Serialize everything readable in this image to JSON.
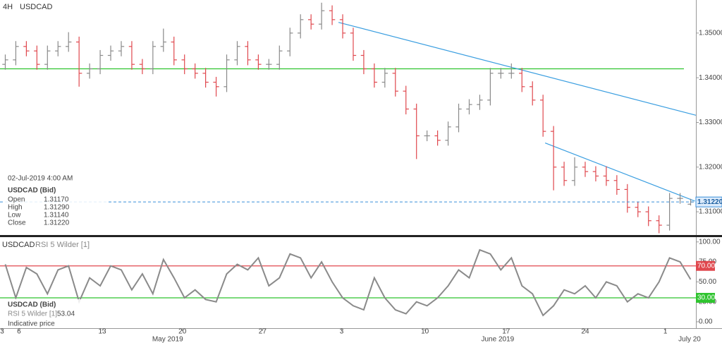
{
  "header": {
    "timeframe": "4H",
    "symbol": "USDCAD"
  },
  "info_box": {
    "date": "02-Jul-2019 4:00 AM",
    "instrument": "USDCAD (Bid)",
    "rows": [
      [
        "Open",
        "1.31170"
      ],
      [
        "High",
        "1.31290"
      ],
      [
        "Low",
        "1.31140"
      ],
      [
        "Close",
        "1.31220"
      ]
    ]
  },
  "rsi_info": {
    "instrument": "USDCAD (Bid)",
    "indicator": "RSI 5 Wilder [1]",
    "note": "Indicative price"
  },
  "chart_data": [
    {
      "type": "ohlc",
      "title": "USDCAD",
      "open": [
        1.343,
        1.344,
        1.347,
        1.346,
        1.343,
        1.346,
        1.347,
        1.348,
        1.341,
        1.342,
        1.345,
        1.346,
        1.347,
        1.343,
        1.342,
        1.347,
        1.348,
        1.344,
        1.342,
        1.341,
        1.339,
        1.338,
        1.344,
        1.347,
        1.344,
        1.343,
        1.343,
        1.346,
        1.35,
        1.353,
        1.352,
        1.355,
        1.353,
        1.35,
        1.345,
        1.342,
        1.339,
        1.341,
        1.337,
        1.333,
        1.327,
        1.327,
        1.326,
        1.329,
        1.333,
        1.334,
        1.335,
        1.341,
        1.341,
        1.341,
        1.338,
        1.335,
        1.328,
        1.32,
        1.317,
        1.32,
        1.319,
        1.318,
        1.317,
        1.315,
        1.311,
        1.31,
        1.308,
        1.307,
        1.313,
        1.3117
      ],
      "high": [
        1.3452,
        1.3482,
        1.3482,
        1.3472,
        1.3472,
        1.3482,
        1.3502,
        1.3492,
        1.3432,
        1.3462,
        1.3472,
        1.3482,
        1.3482,
        1.3442,
        1.3482,
        1.351,
        1.3492,
        1.3452,
        1.3432,
        1.3422,
        1.3402,
        1.3452,
        1.3482,
        1.3482,
        1.3452,
        1.3442,
        1.3472,
        1.3512,
        1.3542,
        1.3542,
        1.3568,
        1.3562,
        1.3542,
        1.3512,
        1.3462,
        1.3432,
        1.3422,
        1.3422,
        1.3382,
        1.3342,
        1.3282,
        1.3282,
        1.3302,
        1.3342,
        1.3352,
        1.3362,
        1.3422,
        1.3422,
        1.3432,
        1.3422,
        1.3392,
        1.3362,
        1.3292,
        1.3212,
        1.3222,
        1.3212,
        1.3202,
        1.3202,
        1.3182,
        1.3162,
        1.3122,
        1.3112,
        1.3092,
        1.3142,
        1.3142,
        1.3129
      ],
      "low": [
        1.3418,
        1.3428,
        1.3448,
        1.3418,
        1.3418,
        1.3448,
        1.3458,
        1.338,
        1.3398,
        1.3408,
        1.3438,
        1.3448,
        1.3418,
        1.3408,
        1.3408,
        1.3458,
        1.3428,
        1.3408,
        1.3398,
        1.3378,
        1.3358,
        1.3368,
        1.3428,
        1.3428,
        1.3418,
        1.3418,
        1.3418,
        1.3448,
        1.3488,
        1.3508,
        1.3508,
        1.3518,
        1.3488,
        1.3438,
        1.3408,
        1.3378,
        1.3378,
        1.3358,
        1.3318,
        1.3218,
        1.3258,
        1.3248,
        1.3248,
        1.3278,
        1.3318,
        1.3328,
        1.3338,
        1.3398,
        1.3398,
        1.3368,
        1.3338,
        1.3268,
        1.3148,
        1.3158,
        1.3158,
        1.3178,
        1.3168,
        1.3158,
        1.3138,
        1.3098,
        1.3088,
        1.3068,
        1.3052,
        1.3058,
        1.3118,
        1.3114
      ],
      "close": [
        1.344,
        1.347,
        1.346,
        1.343,
        1.346,
        1.347,
        1.348,
        1.341,
        1.342,
        1.345,
        1.346,
        1.347,
        1.343,
        1.342,
        1.347,
        1.348,
        1.344,
        1.342,
        1.341,
        1.339,
        1.338,
        1.344,
        1.347,
        1.344,
        1.343,
        1.343,
        1.346,
        1.35,
        1.353,
        1.352,
        1.355,
        1.353,
        1.35,
        1.345,
        1.342,
        1.339,
        1.341,
        1.337,
        1.333,
        1.327,
        1.327,
        1.326,
        1.329,
        1.333,
        1.334,
        1.335,
        1.341,
        1.341,
        1.341,
        1.338,
        1.335,
        1.328,
        1.32,
        1.317,
        1.32,
        1.319,
        1.318,
        1.317,
        1.315,
        1.311,
        1.31,
        1.308,
        1.307,
        1.313,
        1.313,
        1.3122
      ],
      "up_color": "#8a8a8a",
      "down_color": "#e0484e",
      "xlim": [
        0,
        66
      ],
      "ylim": [
        1.3048,
        1.3574
      ],
      "yticks": [
        {
          "value": 1.31,
          "label": "1.31000"
        },
        {
          "value": 1.32,
          "label": "1.32000"
        },
        {
          "value": 1.33,
          "label": "1.33000"
        },
        {
          "value": 1.34,
          "label": "1.34000"
        },
        {
          "value": 1.35,
          "label": "1.35000"
        }
      ],
      "last_price": {
        "value": 1.3122,
        "label": "1.31220",
        "color": "#3a8fd9"
      },
      "horizontal_lines": [
        {
          "value": 1.342,
          "color": "#2fc42f"
        }
      ],
      "trend_lines": [
        {
          "from": [
            32.1,
            1.3524
          ],
          "to": [
            66,
            1.3316
          ],
          "color": "#3a9ee0"
        },
        {
          "from": [
            51.7,
            1.3254
          ],
          "to": [
            65.9,
            1.3124
          ],
          "color": "#3a9ee0"
        }
      ]
    },
    {
      "type": "line",
      "title": "RSI 5 Wilder [1]",
      "symbol": "USDCAD",
      "color": "#8a8a8a",
      "values": [
        72,
        30,
        68,
        60,
        35,
        65,
        70,
        25,
        55,
        45,
        70,
        65,
        40,
        60,
        35,
        78,
        55,
        30,
        40,
        28,
        25,
        60,
        72,
        65,
        80,
        45,
        55,
        85,
        80,
        55,
        75,
        50,
        30,
        20,
        15,
        55,
        30,
        15,
        10,
        25,
        20,
        30,
        45,
        65,
        55,
        90,
        85,
        65,
        80,
        45,
        35,
        8,
        20,
        40,
        35,
        45,
        30,
        50,
        45,
        25,
        35,
        30,
        50,
        80,
        75,
        53.04
      ],
      "xlim": [
        0,
        66
      ],
      "ylim": [
        -8,
        106
      ],
      "yticks": [
        {
          "value": 0,
          "label": "0.00"
        },
        {
          "value": 25,
          "label": "25.00"
        },
        {
          "value": 50,
          "label": "50.00"
        },
        {
          "value": 75,
          "label": "75.00"
        },
        {
          "value": 100,
          "label": "100.00"
        }
      ],
      "levels": [
        {
          "value": 70,
          "label": "70.00",
          "color": "#e0484e"
        },
        {
          "value": 30,
          "label": "30.00",
          "color": "#2fc42f"
        }
      ],
      "xticks": [
        {
          "value": 0.2,
          "label": "3"
        },
        {
          "value": 1.8,
          "label": "6"
        },
        {
          "value": 9.7,
          "label": "13"
        },
        {
          "value": 17.3,
          "label": "20"
        },
        {
          "value": 24.9,
          "label": "27"
        },
        {
          "value": 32.4,
          "label": "3"
        },
        {
          "value": 40.3,
          "label": "10"
        },
        {
          "value": 48.0,
          "label": "17"
        },
        {
          "value": 55.5,
          "label": "24"
        },
        {
          "value": 63.1,
          "label": "1"
        }
      ],
      "month_ticks": [
        {
          "value": 15.9,
          "label": "May 2019"
        },
        {
          "value": 47.2,
          "label": "June 2019"
        },
        {
          "value": 65.4,
          "label": "July 20"
        }
      ]
    }
  ]
}
